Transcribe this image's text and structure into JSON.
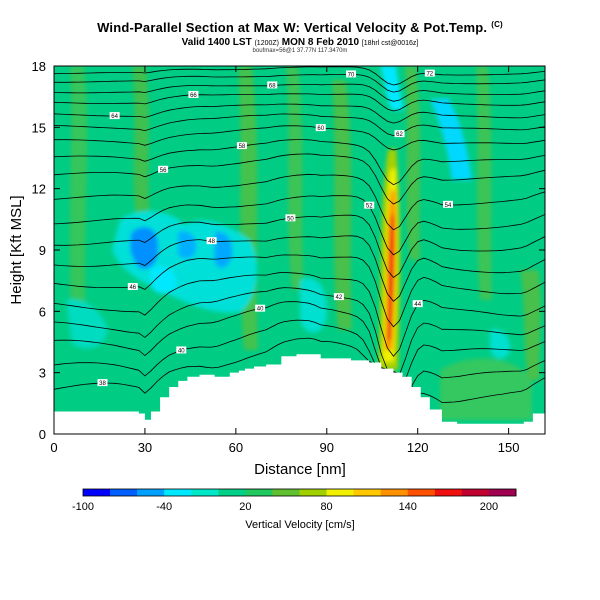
{
  "header": {
    "title": "Wind-Parallel Section at Max W: Vertical Velocity & Pot.Temp.",
    "title_mark": "(C)",
    "subtitle_prefix": "Valid 1400 LST",
    "subtitle_note1": "(1200Z)",
    "subtitle_main": "MON 8 Feb 2010",
    "subtitle_note2": "[18hrl cst@0016z]",
    "small_line": "boufmax=56@1 37.77N 117.3470m"
  },
  "chart_data": {
    "type": "heatmap",
    "xlabel": "Distance [nm]",
    "ylabel": "Height [Kft MSL]",
    "xlim": [
      0,
      162
    ],
    "ylim": [
      0,
      18
    ],
    "xticks": [
      0,
      30,
      60,
      90,
      120,
      150
    ],
    "yticks": [
      0,
      3,
      6,
      9,
      12,
      15,
      18
    ],
    "terrain_kft": [
      [
        0,
        1.1
      ],
      [
        20,
        1.1
      ],
      [
        28,
        1.0
      ],
      [
        30,
        0.7
      ],
      [
        32,
        1.1
      ],
      [
        35,
        1.8
      ],
      [
        38,
        2.3
      ],
      [
        41,
        2.6
      ],
      [
        44,
        2.8
      ],
      [
        48,
        2.9
      ],
      [
        53,
        2.8
      ],
      [
        58,
        3.0
      ],
      [
        61,
        3.1
      ],
      [
        63,
        3.2
      ],
      [
        66,
        3.3
      ],
      [
        70,
        3.4
      ],
      [
        75,
        3.8
      ],
      [
        80,
        3.9
      ],
      [
        85,
        3.9
      ],
      [
        88,
        3.7
      ],
      [
        92,
        3.7
      ],
      [
        98,
        3.6
      ],
      [
        104,
        3.5
      ],
      [
        108,
        3.2
      ],
      [
        112,
        3.0
      ],
      [
        115,
        2.8
      ],
      [
        118,
        2.3
      ],
      [
        121,
        1.8
      ],
      [
        124,
        1.2
      ],
      [
        128,
        0.6
      ],
      [
        133,
        0.5
      ],
      [
        140,
        0.5
      ],
      [
        148,
        0.5
      ],
      [
        155,
        0.6
      ],
      [
        158,
        1.0
      ],
      [
        162,
        1.5
      ]
    ],
    "theta_levels": [
      {
        "label": "38",
        "kft": 2.5
      },
      {
        "label": "40",
        "kft": 3.5
      },
      {
        "label": "40",
        "kft": 4.6
      },
      {
        "label": "42",
        "kft": 5.5
      },
      {
        "label": "44",
        "kft": 6.5
      },
      {
        "label": "46",
        "kft": 7.6
      },
      {
        "label": "48",
        "kft": 8.6
      },
      {
        "label": "50",
        "kft": 9.6
      },
      {
        "label": "52",
        "kft": 10.6
      },
      {
        "label": "54",
        "kft": 11.7
      },
      {
        "label": "56",
        "kft": 12.8
      },
      {
        "label": "58",
        "kft": 13.6
      },
      {
        "label": "60",
        "kft": 14.4
      },
      {
        "label": "62",
        "kft": 15.1
      },
      {
        "label": "64",
        "kft": 15.7
      },
      {
        "label": "66",
        "kft": 16.3
      },
      {
        "label": "68",
        "kft": 16.8
      },
      {
        "label": "70",
        "kft": 17.3
      },
      {
        "label": "72",
        "kft": 17.7
      }
    ],
    "colorbar": {
      "label": "Vertical Velocity [cm/s]",
      "tick_labels": [
        "-100",
        "-40",
        "20",
        "80",
        "140",
        "200"
      ],
      "tick_values": [
        -100,
        -40,
        20,
        80,
        140,
        200
      ],
      "min": -100,
      "max": 220,
      "colors": [
        "#0000ff",
        "#0060ff",
        "#00a0ff",
        "#00e8ff",
        "#00e8c8",
        "#00d088",
        "#20c860",
        "#60c030",
        "#a0d000",
        "#f0f000",
        "#ffc800",
        "#ff9000",
        "#ff5000",
        "#f01010",
        "#c00030",
        "#a00050"
      ]
    }
  }
}
